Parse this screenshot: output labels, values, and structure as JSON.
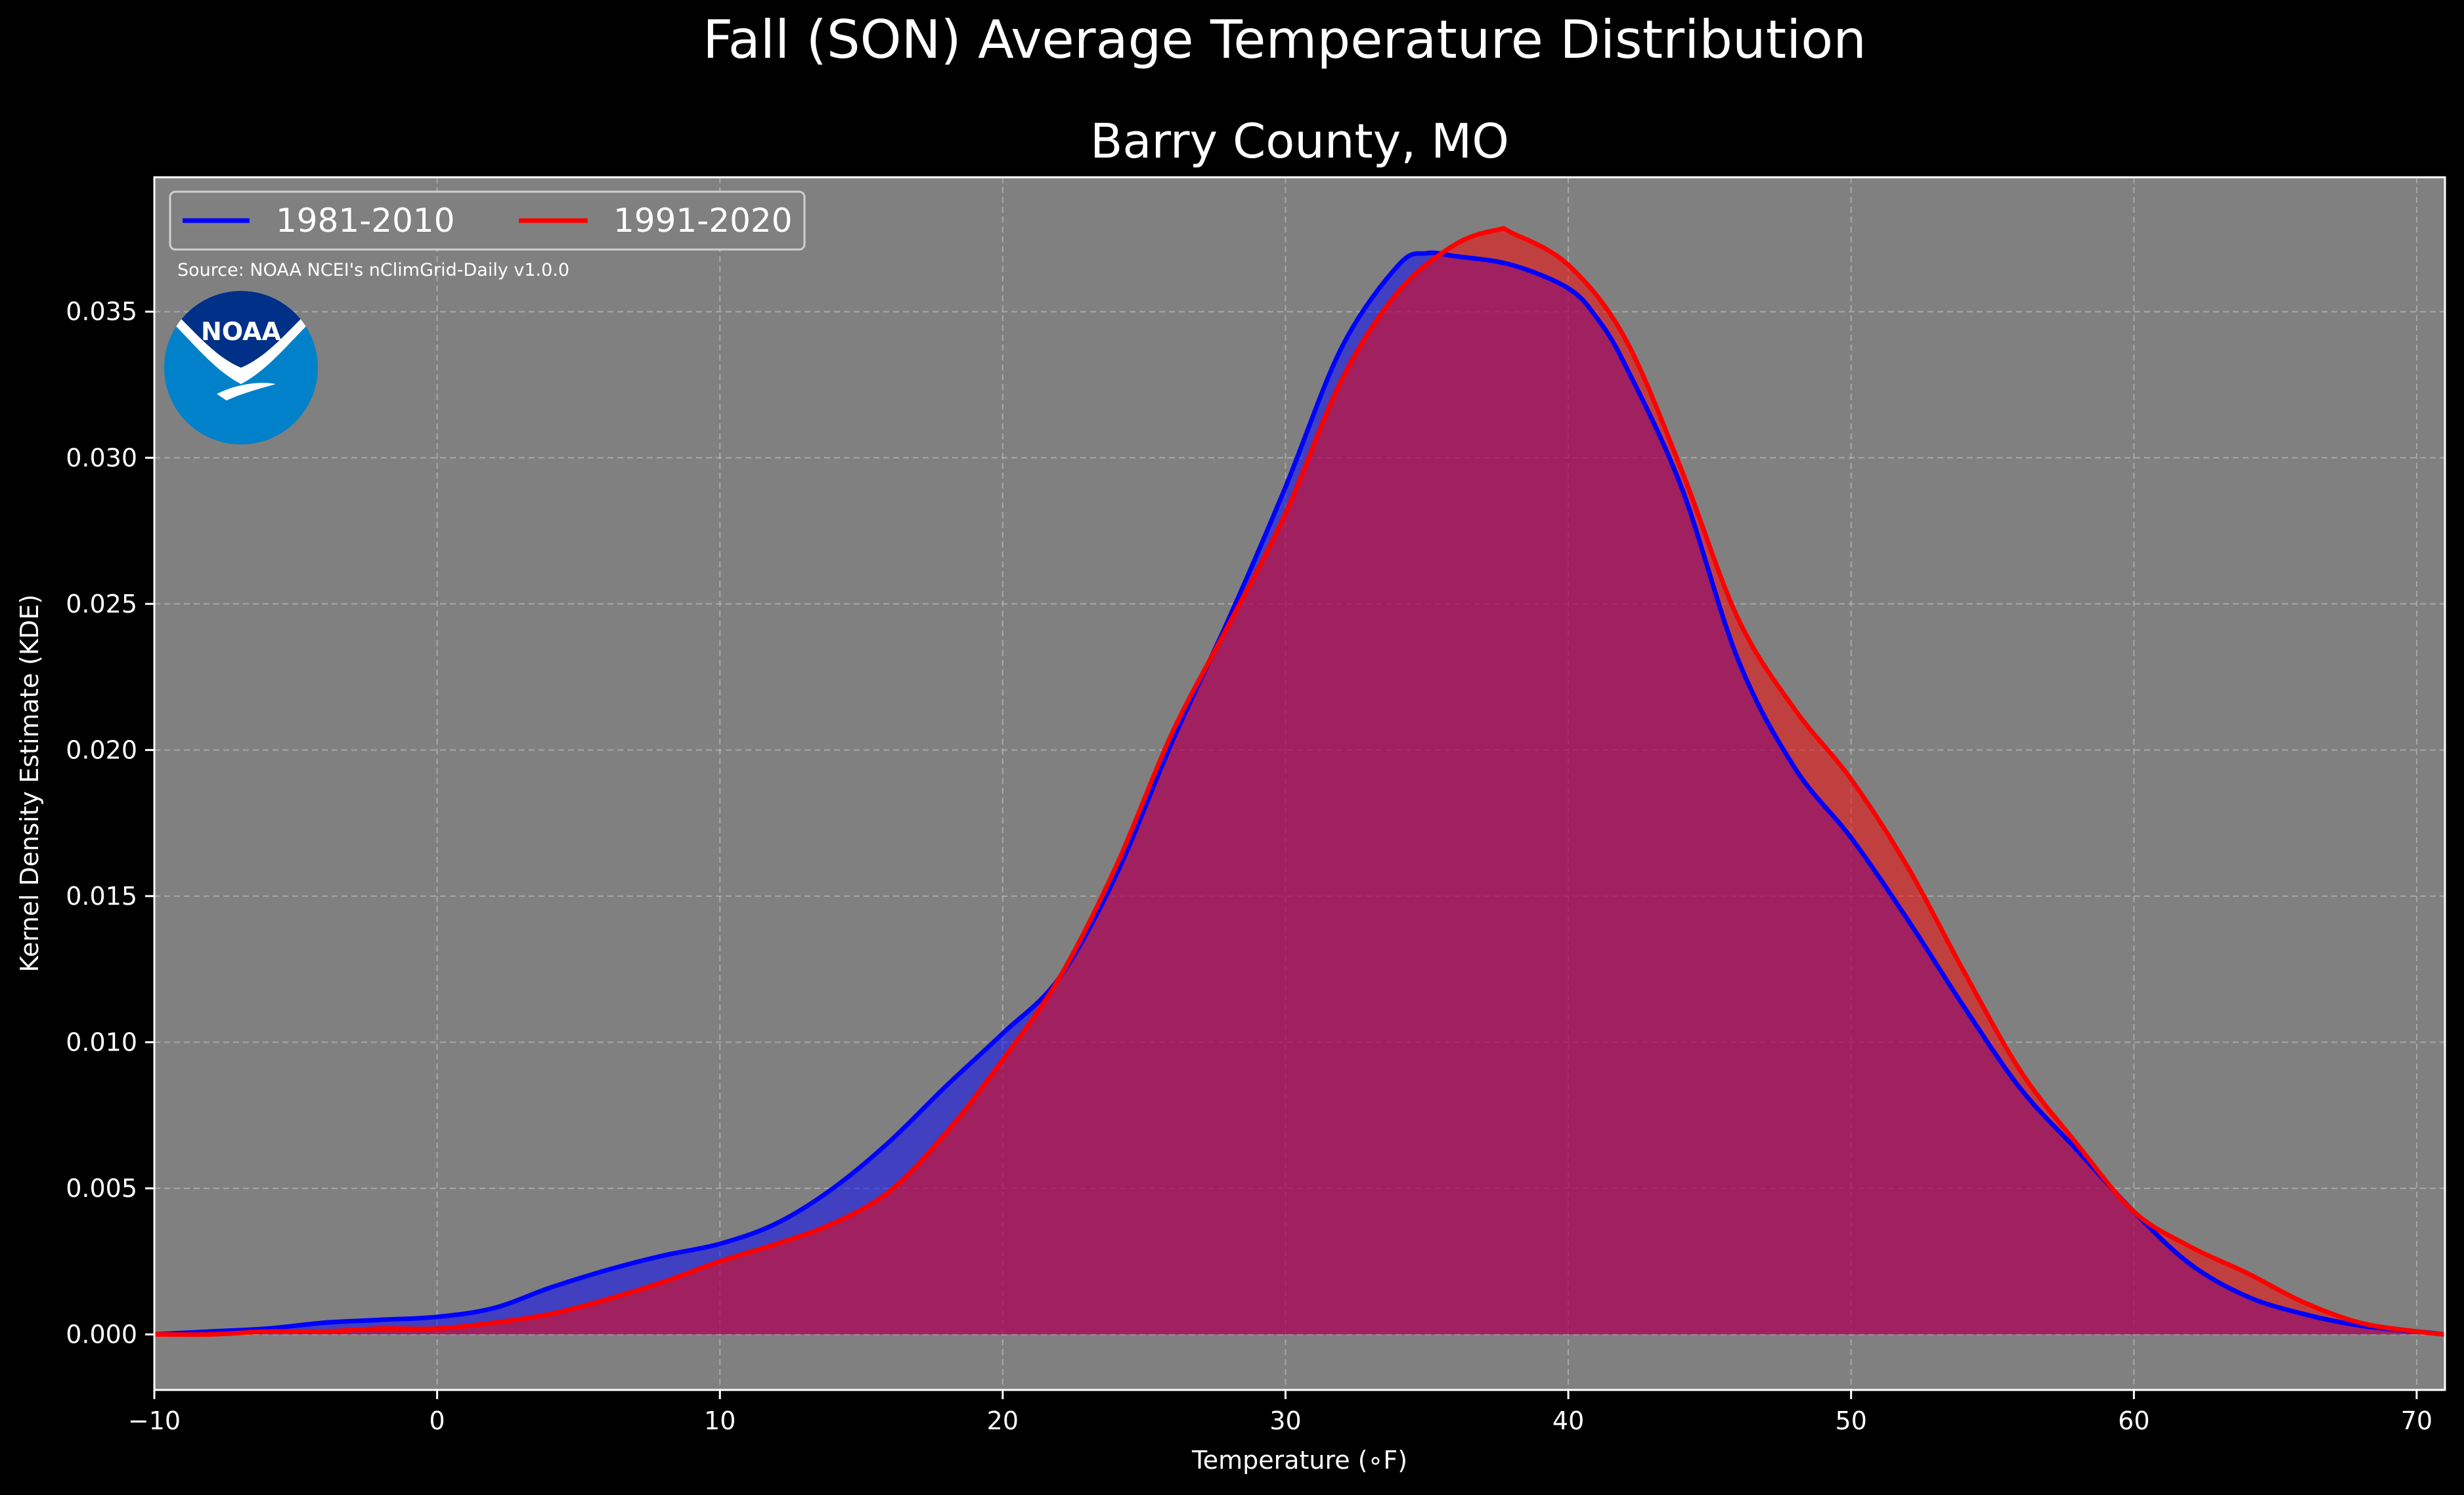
{
  "chart_data": {
    "type": "area",
    "suptitle": "Fall (SON) Average Temperature Distribution",
    "title": "Barry County, MO",
    "xlabel": "Temperature (∘F)",
    "ylabel": "Kernel Density Estimate (KDE)",
    "xlim": [
      -10,
      71
    ],
    "ylim": [
      -0.0019,
      0.0396
    ],
    "xticks": [
      -10,
      0,
      10,
      20,
      30,
      40,
      50,
      60,
      70
    ],
    "yticks": [
      "0.000",
      "0.005",
      "0.010",
      "0.015",
      "0.020",
      "0.025",
      "0.030",
      "0.035"
    ],
    "grid": true,
    "legend_position": "top-left",
    "source_note": "Source: NOAA NCEI's nClimGrid-Daily v1.0.0",
    "logo_text": "NOAA",
    "background_color": "#808080",
    "series": [
      {
        "name": "1981-2010",
        "color": "#0000ff",
        "fill_color": "rgba(0,0,255,0.5)",
        "x": [
          -10,
          -8,
          -6,
          -4,
          -2,
          0,
          2,
          4,
          6,
          8,
          10,
          12,
          14,
          16,
          18,
          20,
          22,
          24,
          26,
          28,
          30,
          32,
          34,
          35,
          36,
          38,
          40,
          41,
          42,
          44,
          46,
          48,
          50,
          52,
          54,
          56,
          58,
          60,
          62,
          64,
          66,
          68,
          70,
          71
        ],
        "values": [
          0.0,
          0.0001,
          0.0002,
          0.0004,
          0.0005,
          0.0006,
          0.0009,
          0.0016,
          0.0022,
          0.0027,
          0.0031,
          0.0038,
          0.005,
          0.0066,
          0.0085,
          0.0103,
          0.0122,
          0.0157,
          0.0203,
          0.0245,
          0.029,
          0.0338,
          0.0366,
          0.037,
          0.0369,
          0.0366,
          0.0358,
          0.0348,
          0.0332,
          0.029,
          0.0231,
          0.0194,
          0.017,
          0.0142,
          0.0112,
          0.0084,
          0.0063,
          0.0042,
          0.0024,
          0.0013,
          0.0007,
          0.0003,
          0.0001,
          0.0
        ]
      },
      {
        "name": "1991-2020",
        "color": "#ff0000",
        "fill_color": "rgba(255,0,0,0.5)",
        "x": [
          -10,
          -8,
          -6,
          -4,
          -2,
          0,
          2,
          4,
          6,
          8,
          10,
          12,
          14,
          16,
          18,
          20,
          22,
          24,
          26,
          28,
          30,
          32,
          34,
          36,
          37.5,
          38,
          40,
          42,
          44,
          46,
          48,
          50,
          52,
          54,
          56,
          58,
          60,
          62,
          64,
          66,
          68,
          70,
          71
        ],
        "values": [
          0.0,
          0.0,
          0.0001,
          0.0001,
          0.0002,
          0.0002,
          0.0004,
          0.0007,
          0.0012,
          0.0018,
          0.0025,
          0.0031,
          0.0038,
          0.0049,
          0.0069,
          0.0094,
          0.0122,
          0.016,
          0.0206,
          0.0243,
          0.0281,
          0.0327,
          0.0357,
          0.0373,
          0.0378,
          0.0377,
          0.0366,
          0.0341,
          0.0296,
          0.0245,
          0.0214,
          0.019,
          0.016,
          0.0124,
          0.009,
          0.0065,
          0.0042,
          0.003,
          0.0021,
          0.0011,
          0.0004,
          0.0001,
          0.0
        ]
      }
    ]
  }
}
